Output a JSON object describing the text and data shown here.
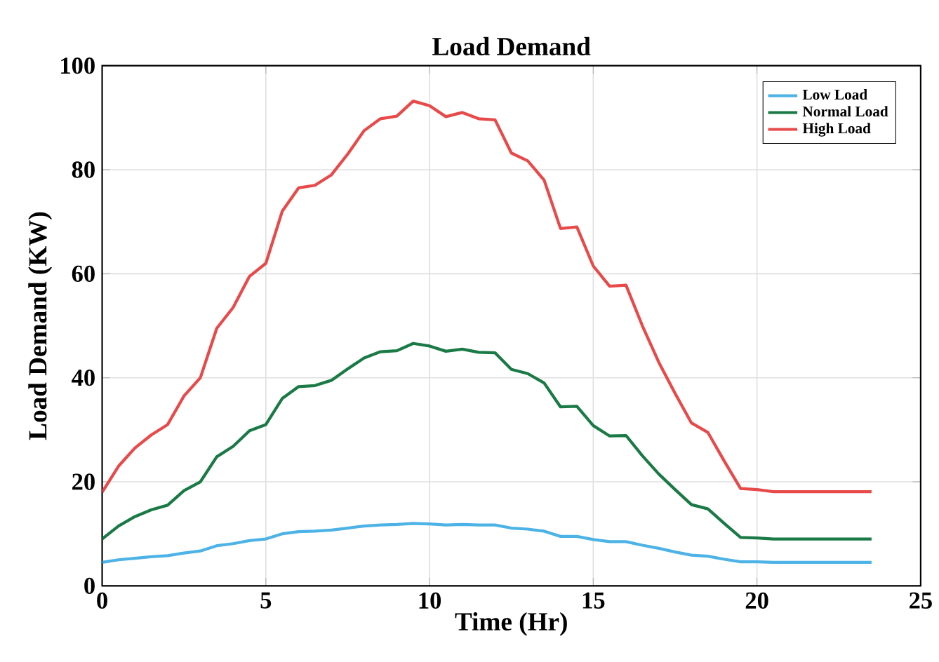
{
  "chart_data": {
    "type": "line",
    "title": "Load Demand",
    "xlabel": "Time (Hr)",
    "ylabel": "Load Demand (KW)",
    "x": [
      0,
      0.5,
      1,
      1.5,
      2,
      2.5,
      3,
      3.5,
      4,
      4.5,
      5,
      5.5,
      6,
      6.5,
      7,
      7.5,
      8,
      8.5,
      9,
      9.5,
      10,
      10.5,
      11,
      11.5,
      12,
      12.5,
      13,
      13.5,
      14,
      14.5,
      15,
      15.5,
      16,
      16.5,
      17,
      17.5,
      18,
      18.5,
      19,
      19.5,
      20,
      20.5,
      21,
      21.5,
      22,
      22.5,
      23,
      23.5
    ],
    "series": [
      {
        "name": "Low Load",
        "color": "#4db3e6",
        "values": [
          4.5,
          5,
          5.3,
          5.6,
          5.8,
          6.3,
          6.7,
          7.7,
          8.1,
          8.7,
          9,
          10,
          10.4,
          10.5,
          10.7,
          11.1,
          11.5,
          11.7,
          11.8,
          12,
          11.9,
          11.7,
          11.8,
          11.7,
          11.7,
          11.1,
          10.9,
          10.5,
          9.5,
          9.5,
          8.9,
          8.5,
          8.5,
          7.8,
          7.2,
          6.5,
          5.9,
          5.7,
          5.1,
          4.6,
          4.6,
          4.5,
          4.5,
          4.5,
          4.5,
          4.5,
          4.5,
          4.5
        ]
      },
      {
        "name": "Normal Load",
        "color": "#1a7a45",
        "values": [
          9,
          11.5,
          13.3,
          14.6,
          15.5,
          18.3,
          20,
          24.8,
          26.8,
          29.8,
          31,
          36,
          38.3,
          38.5,
          39.5,
          41.7,
          43.8,
          45,
          45.2,
          46.6,
          46.1,
          45.1,
          45.5,
          44.9,
          44.8,
          41.6,
          40.8,
          39,
          34.4,
          34.5,
          30.8,
          28.8,
          28.9,
          25,
          21.5,
          18.5,
          15.6,
          14.8,
          12,
          9.3,
          9.2,
          9,
          9,
          9,
          9,
          9,
          9,
          9
        ]
      },
      {
        "name": "High Load",
        "color": "#e84a4a",
        "values": [
          18,
          23,
          26.5,
          29,
          31,
          36.5,
          40,
          49.5,
          53.5,
          59.5,
          62,
          72,
          76.5,
          77,
          79,
          83,
          87.5,
          89.8,
          90.3,
          93.2,
          92.3,
          90.2,
          91,
          89.8,
          89.6,
          83.2,
          81.7,
          78,
          68.7,
          69,
          61.5,
          57.6,
          57.8,
          50,
          43,
          37,
          31.3,
          29.5,
          24,
          18.7,
          18.5,
          18.1,
          18.1,
          18.1,
          18.1,
          18.1,
          18.1,
          18.1
        ]
      }
    ],
    "xlim": [
      0,
      25
    ],
    "ylim": [
      0,
      100
    ],
    "xticks": [
      0,
      5,
      10,
      15,
      20,
      25
    ],
    "yticks": [
      0,
      20,
      40,
      60,
      80,
      100
    ],
    "grid": true,
    "legend": "top right",
    "line_style": "solid",
    "marker": "none"
  }
}
